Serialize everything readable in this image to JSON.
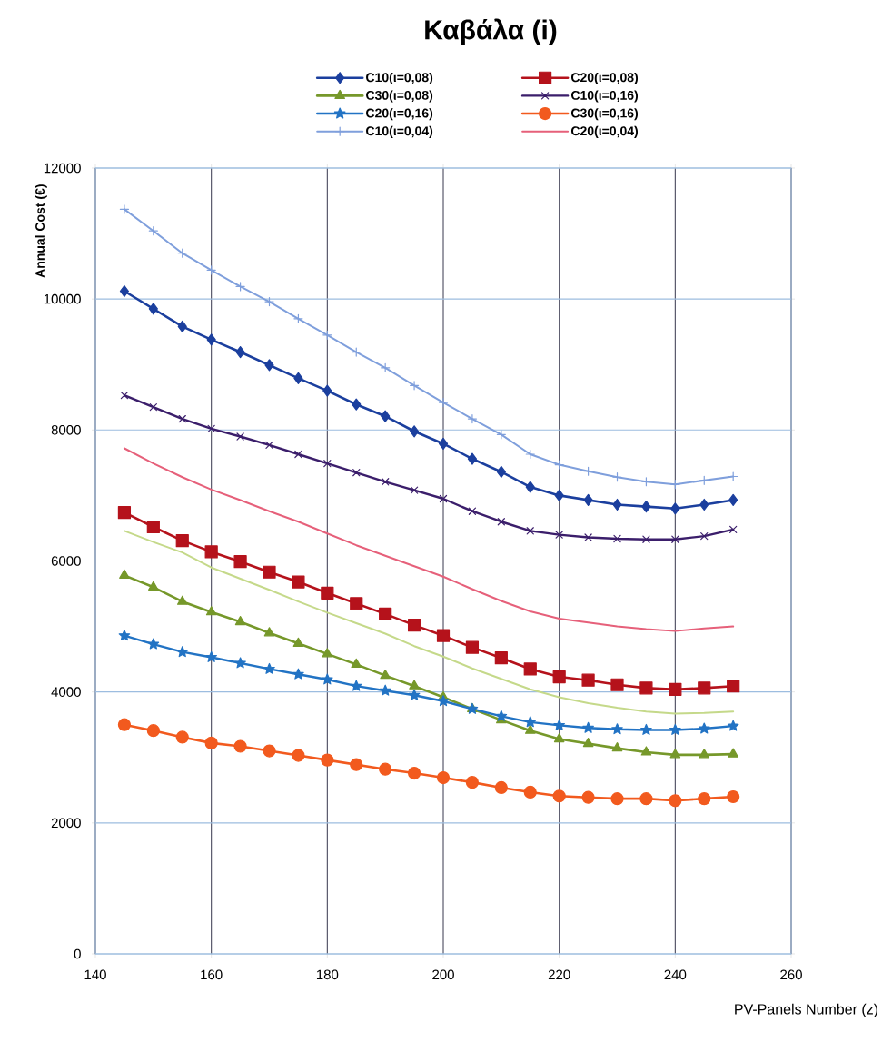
{
  "chart_data": {
    "type": "line",
    "title": "Καβάλα (i)",
    "xlabel": "PV-Panels Number (z)",
    "ylabel": "Annual Cost (€)",
    "x": [
      145,
      150,
      155,
      160,
      165,
      170,
      175,
      180,
      185,
      190,
      195,
      200,
      205,
      210,
      215,
      220,
      225,
      230,
      235,
      240,
      245,
      250
    ],
    "xlim": [
      140,
      260
    ],
    "ylim": [
      0,
      12000
    ],
    "xticks": [
      140,
      160,
      180,
      200,
      220,
      240,
      260
    ],
    "yticks": [
      0,
      2000,
      4000,
      6000,
      8000,
      10000,
      12000
    ],
    "grid": true,
    "legend": "top",
    "series": [
      {
        "name": "C10(ι=0,08)",
        "color": "#1b3f9e",
        "marker": "diamond",
        "values": [
          10120,
          9850,
          9580,
          9380,
          9190,
          8990,
          8790,
          8600,
          8390,
          8210,
          7980,
          7790,
          7560,
          7360,
          7130,
          7000,
          6930,
          6860,
          6830,
          6800,
          6860,
          6930
        ]
      },
      {
        "name": "C20(ι=0,08)",
        "color": "#b5121b",
        "marker": "square",
        "values": [
          6740,
          6520,
          6310,
          6140,
          5990,
          5830,
          5680,
          5510,
          5350,
          5190,
          5020,
          4860,
          4680,
          4520,
          4350,
          4230,
          4180,
          4110,
          4060,
          4040,
          4060,
          4090
        ]
      },
      {
        "name": "C30(ι=0,08)",
        "color": "#76982a",
        "marker": "triangle",
        "values": [
          5780,
          5600,
          5380,
          5220,
          5070,
          4900,
          4740,
          4580,
          4420,
          4250,
          4090,
          3920,
          3740,
          3570,
          3410,
          3280,
          3210,
          3140,
          3080,
          3040,
          3040,
          3050
        ]
      },
      {
        "name": "C10(ι=0,16)",
        "color": "#3b1e6b",
        "marker": "cross",
        "values": [
          8530,
          8350,
          8170,
          8020,
          7900,
          7770,
          7630,
          7490,
          7350,
          7210,
          7080,
          6950,
          6760,
          6600,
          6460,
          6400,
          6360,
          6340,
          6330,
          6330,
          6380,
          6480
        ]
      },
      {
        "name": "C20(ι=0,16)",
        "color": "#2273c4",
        "marker": "star",
        "values": [
          4860,
          4730,
          4610,
          4530,
          4440,
          4350,
          4270,
          4190,
          4090,
          4020,
          3950,
          3860,
          3740,
          3630,
          3540,
          3490,
          3450,
          3430,
          3420,
          3420,
          3440,
          3480
        ]
      },
      {
        "name": "C30(ι=0,16)",
        "color": "#f25a1e",
        "marker": "circle",
        "values": [
          3500,
          3410,
          3310,
          3220,
          3170,
          3100,
          3030,
          2960,
          2890,
          2820,
          2760,
          2690,
          2620,
          2540,
          2470,
          2410,
          2390,
          2370,
          2370,
          2340,
          2370,
          2400
        ]
      },
      {
        "name": "C10(ι=0,04)",
        "color": "#7f9fdc",
        "marker": "plus",
        "values": [
          11370,
          11040,
          10700,
          10440,
          10190,
          9960,
          9700,
          9450,
          9190,
          8950,
          8680,
          8420,
          8170,
          7930,
          7630,
          7470,
          7370,
          7280,
          7210,
          7170,
          7230,
          7290
        ]
      },
      {
        "name": "C20(ι=0,04)",
        "color": "#e6607a",
        "values": [
          7720,
          7490,
          7280,
          7090,
          6930,
          6760,
          6600,
          6420,
          6240,
          6080,
          5920,
          5760,
          5570,
          5390,
          5230,
          5120,
          5060,
          5000,
          4960,
          4930,
          4970,
          5000
        ]
      },
      {
        "color": "#c5d98a",
        "values": [
          6460,
          6290,
          6130,
          5900,
          5730,
          5560,
          5380,
          5210,
          5050,
          4890,
          4700,
          4540,
          4360,
          4200,
          4040,
          3920,
          3830,
          3760,
          3700,
          3670,
          3680,
          3700
        ]
      }
    ]
  }
}
